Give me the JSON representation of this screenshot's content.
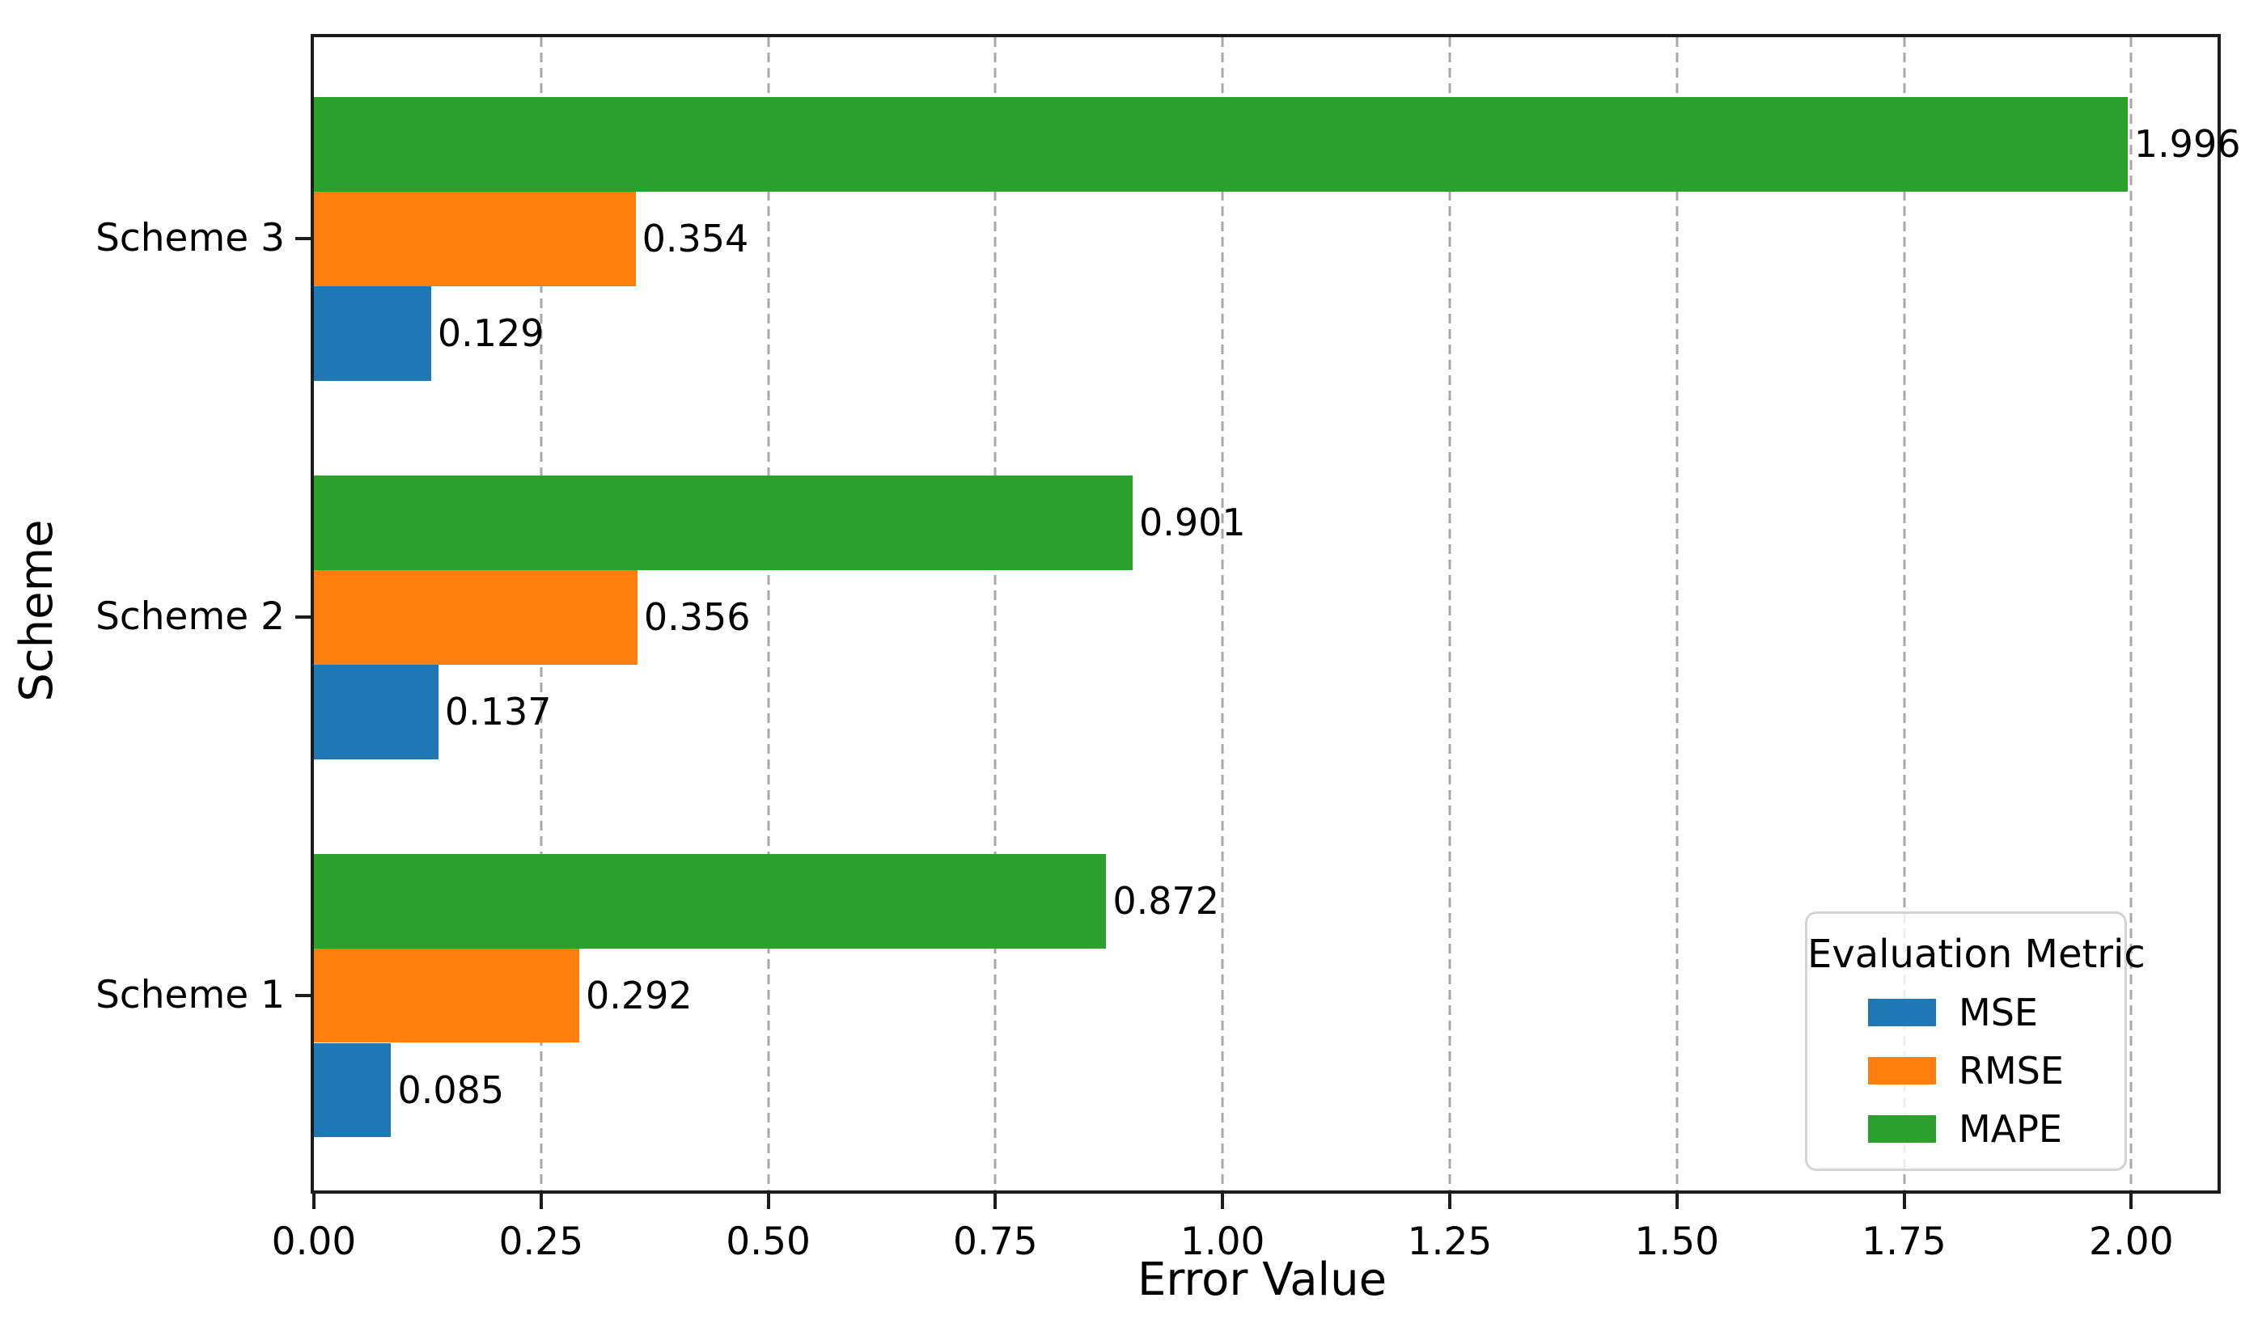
{
  "chart_data": {
    "type": "bar",
    "orientation": "horizontal",
    "title": "",
    "xlabel": "Error Value",
    "ylabel": "Scheme",
    "categories": [
      "Scheme 1",
      "Scheme 2",
      "Scheme 3"
    ],
    "series": [
      {
        "name": "MSE",
        "color": "#1f77b4",
        "values": [
          0.085,
          0.137,
          0.129
        ]
      },
      {
        "name": "RMSE",
        "color": "#ff7f0e",
        "values": [
          0.292,
          0.356,
          0.354
        ]
      },
      {
        "name": "MAPE",
        "color": "#2ca02c",
        "values": [
          0.872,
          0.901,
          1.996
        ]
      }
    ],
    "bar_value_labels": [
      [
        "0.085",
        "0.137",
        "0.129"
      ],
      [
        "0.292",
        "0.356",
        "0.354"
      ],
      [
        "0.872",
        "0.901",
        "1.996"
      ]
    ],
    "xticks": [
      "0.00",
      "0.25",
      "0.50",
      "0.75",
      "1.00",
      "1.25",
      "1.50",
      "1.75",
      "2.00"
    ],
    "xtick_values": [
      0.0,
      0.25,
      0.5,
      0.75,
      1.0,
      1.25,
      1.5,
      1.75,
      2.0
    ],
    "xlim": [
      0,
      2.095
    ],
    "grid": "vertical-dashed",
    "grid_color": "#a8a8a8",
    "legend": {
      "title": "Evaluation Metric",
      "position": "lower right",
      "entries": [
        "MSE",
        "RMSE",
        "MAPE"
      ]
    }
  }
}
